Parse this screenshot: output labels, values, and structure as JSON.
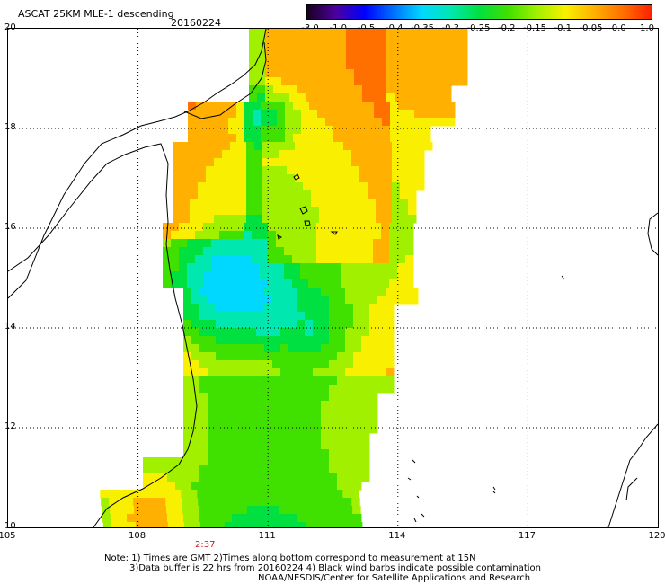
{
  "header": {
    "title": "ASCAT 25KM MLE-1 descending",
    "date": "20160224"
  },
  "colors": {
    "scale": [
      "#1a0020",
      "#4b00a0",
      "#0000ff",
      "#0070ff",
      "#00d8ff",
      "#00e8b0",
      "#00e040",
      "#40e000",
      "#a0f000",
      "#f8f000",
      "#ffb000",
      "#ff7000",
      "#ff2000"
    ],
    "coast": "#000000",
    "grid": "#000000"
  },
  "scale_labels": [
    "-3.0",
    "-1.0",
    "-0.5",
    "-0.4",
    "-0.35",
    "-0.3",
    "-0.25",
    "-0.2",
    "-0.15",
    "-0.1",
    "-0.05",
    "0.0",
    "1.0"
  ],
  "map": {
    "lat_labels": [
      "20",
      "18",
      "16",
      "14",
      "12",
      "10"
    ],
    "lon_labels": [
      "105",
      "108",
      "111",
      "114",
      "117",
      "120"
    ],
    "time_label": "2:37"
  },
  "notes": {
    "line1": "Note: 1) Times are GMT 2)Times along bottom correspond to measurement at 15N",
    "line2": "3)Data buffer is 22 hrs from 20160224 4) Black wind barbs indicate possible contamination",
    "line3": "NOAA/NESDIS/Center for Satellite Applications and Research"
  }
}
